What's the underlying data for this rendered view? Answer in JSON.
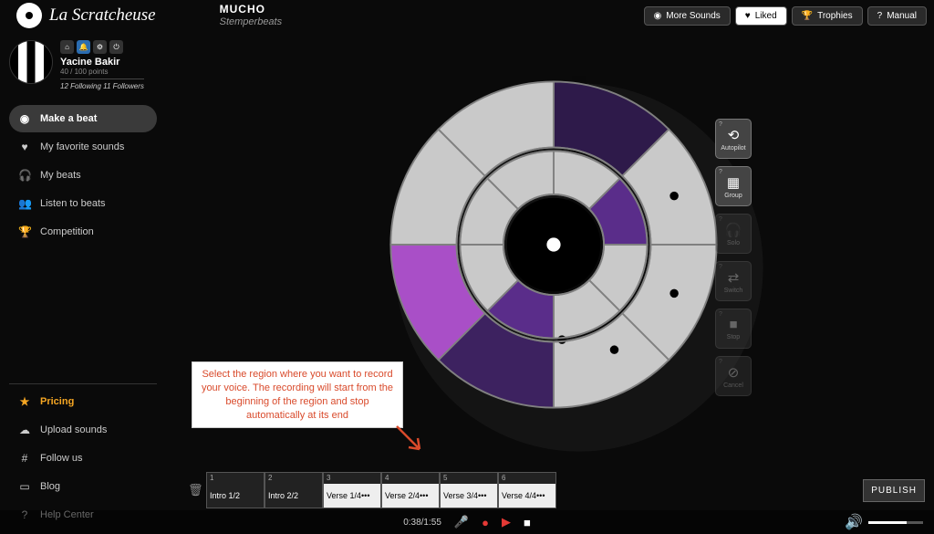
{
  "app": {
    "name": "La Scratcheuse"
  },
  "track": {
    "title": "MUCHO",
    "artist": "Stemperbeats"
  },
  "topButtons": {
    "moreSounds": "More Sounds",
    "liked": "Liked",
    "trophies": "Trophies",
    "manual": "Manual"
  },
  "user": {
    "name": "Yacine Bakir",
    "points": "40 / 100 points",
    "follow": "12 Following 11 Followers"
  },
  "nav": {
    "makeBeat": "Make a beat",
    "favorite": "My favorite sounds",
    "myBeats": "My beats",
    "listen": "Listen to beats",
    "competition": "Competition"
  },
  "bottomNav": {
    "pricing": "Pricing",
    "upload": "Upload sounds",
    "follow": "Follow us",
    "blog": "Blog",
    "help": "Help Center"
  },
  "tools": {
    "autopilot": "Autopilot",
    "group": "Group",
    "solo": "Solo",
    "switch": "Switch",
    "stop": "Stop",
    "cancel": "Cancel"
  },
  "hint": "Select the region where you want to record your voice. The recording will start from the beginning of the region and stop automatically at its end",
  "regions": [
    {
      "n": "1",
      "label": "Intro 1/2",
      "style": "dark"
    },
    {
      "n": "2",
      "label": "Intro 2/2",
      "style": "dark"
    },
    {
      "n": "3",
      "label": "Verse 1/4•••",
      "style": "light"
    },
    {
      "n": "4",
      "label": "Verse 2/4•••",
      "style": "light"
    },
    {
      "n": "5",
      "label": "Verse 3/4•••",
      "style": "light"
    },
    {
      "n": "6",
      "label": "Verse 4/4•••",
      "style": "light"
    }
  ],
  "publish": "PUBLISH",
  "transport": {
    "time": "0:38/1:55"
  },
  "wheel": {
    "colors": {
      "grey": "#c9c9c9",
      "darkGrey": "#a8a8a8",
      "purple1": "#2e1a4a",
      "purple2": "#3d2260",
      "purple3": "#5a2d8a",
      "magenta": "#a94fc7",
      "black": "#000000",
      "white": "#ffffff",
      "gap": "#808080"
    },
    "outerSegments": [
      {
        "start": -90,
        "end": -45,
        "fill": "purple1"
      },
      {
        "start": -45,
        "end": 0,
        "fill": "grey"
      },
      {
        "start": 0,
        "end": 45,
        "fill": "grey"
      },
      {
        "start": 45,
        "end": 90,
        "fill": "grey"
      },
      {
        "start": 90,
        "end": 135,
        "fill": "purple2"
      },
      {
        "start": 135,
        "end": 180,
        "fill": "magenta"
      },
      {
        "start": 180,
        "end": 225,
        "fill": "grey"
      },
      {
        "start": 225,
        "end": 270,
        "fill": "grey"
      }
    ],
    "innerSegments": [
      {
        "start": -90,
        "end": -45,
        "fill": "grey"
      },
      {
        "start": -45,
        "end": 0,
        "fill": "purple3"
      },
      {
        "start": 0,
        "end": 45,
        "fill": "grey"
      },
      {
        "start": 45,
        "end": 90,
        "fill": "grey"
      },
      {
        "start": 90,
        "end": 135,
        "fill": "purple3"
      },
      {
        "start": 135,
        "end": 180,
        "fill": "grey"
      },
      {
        "start": 180,
        "end": 225,
        "fill": "grey"
      },
      {
        "start": 225,
        "end": 270,
        "fill": "grey"
      }
    ]
  }
}
